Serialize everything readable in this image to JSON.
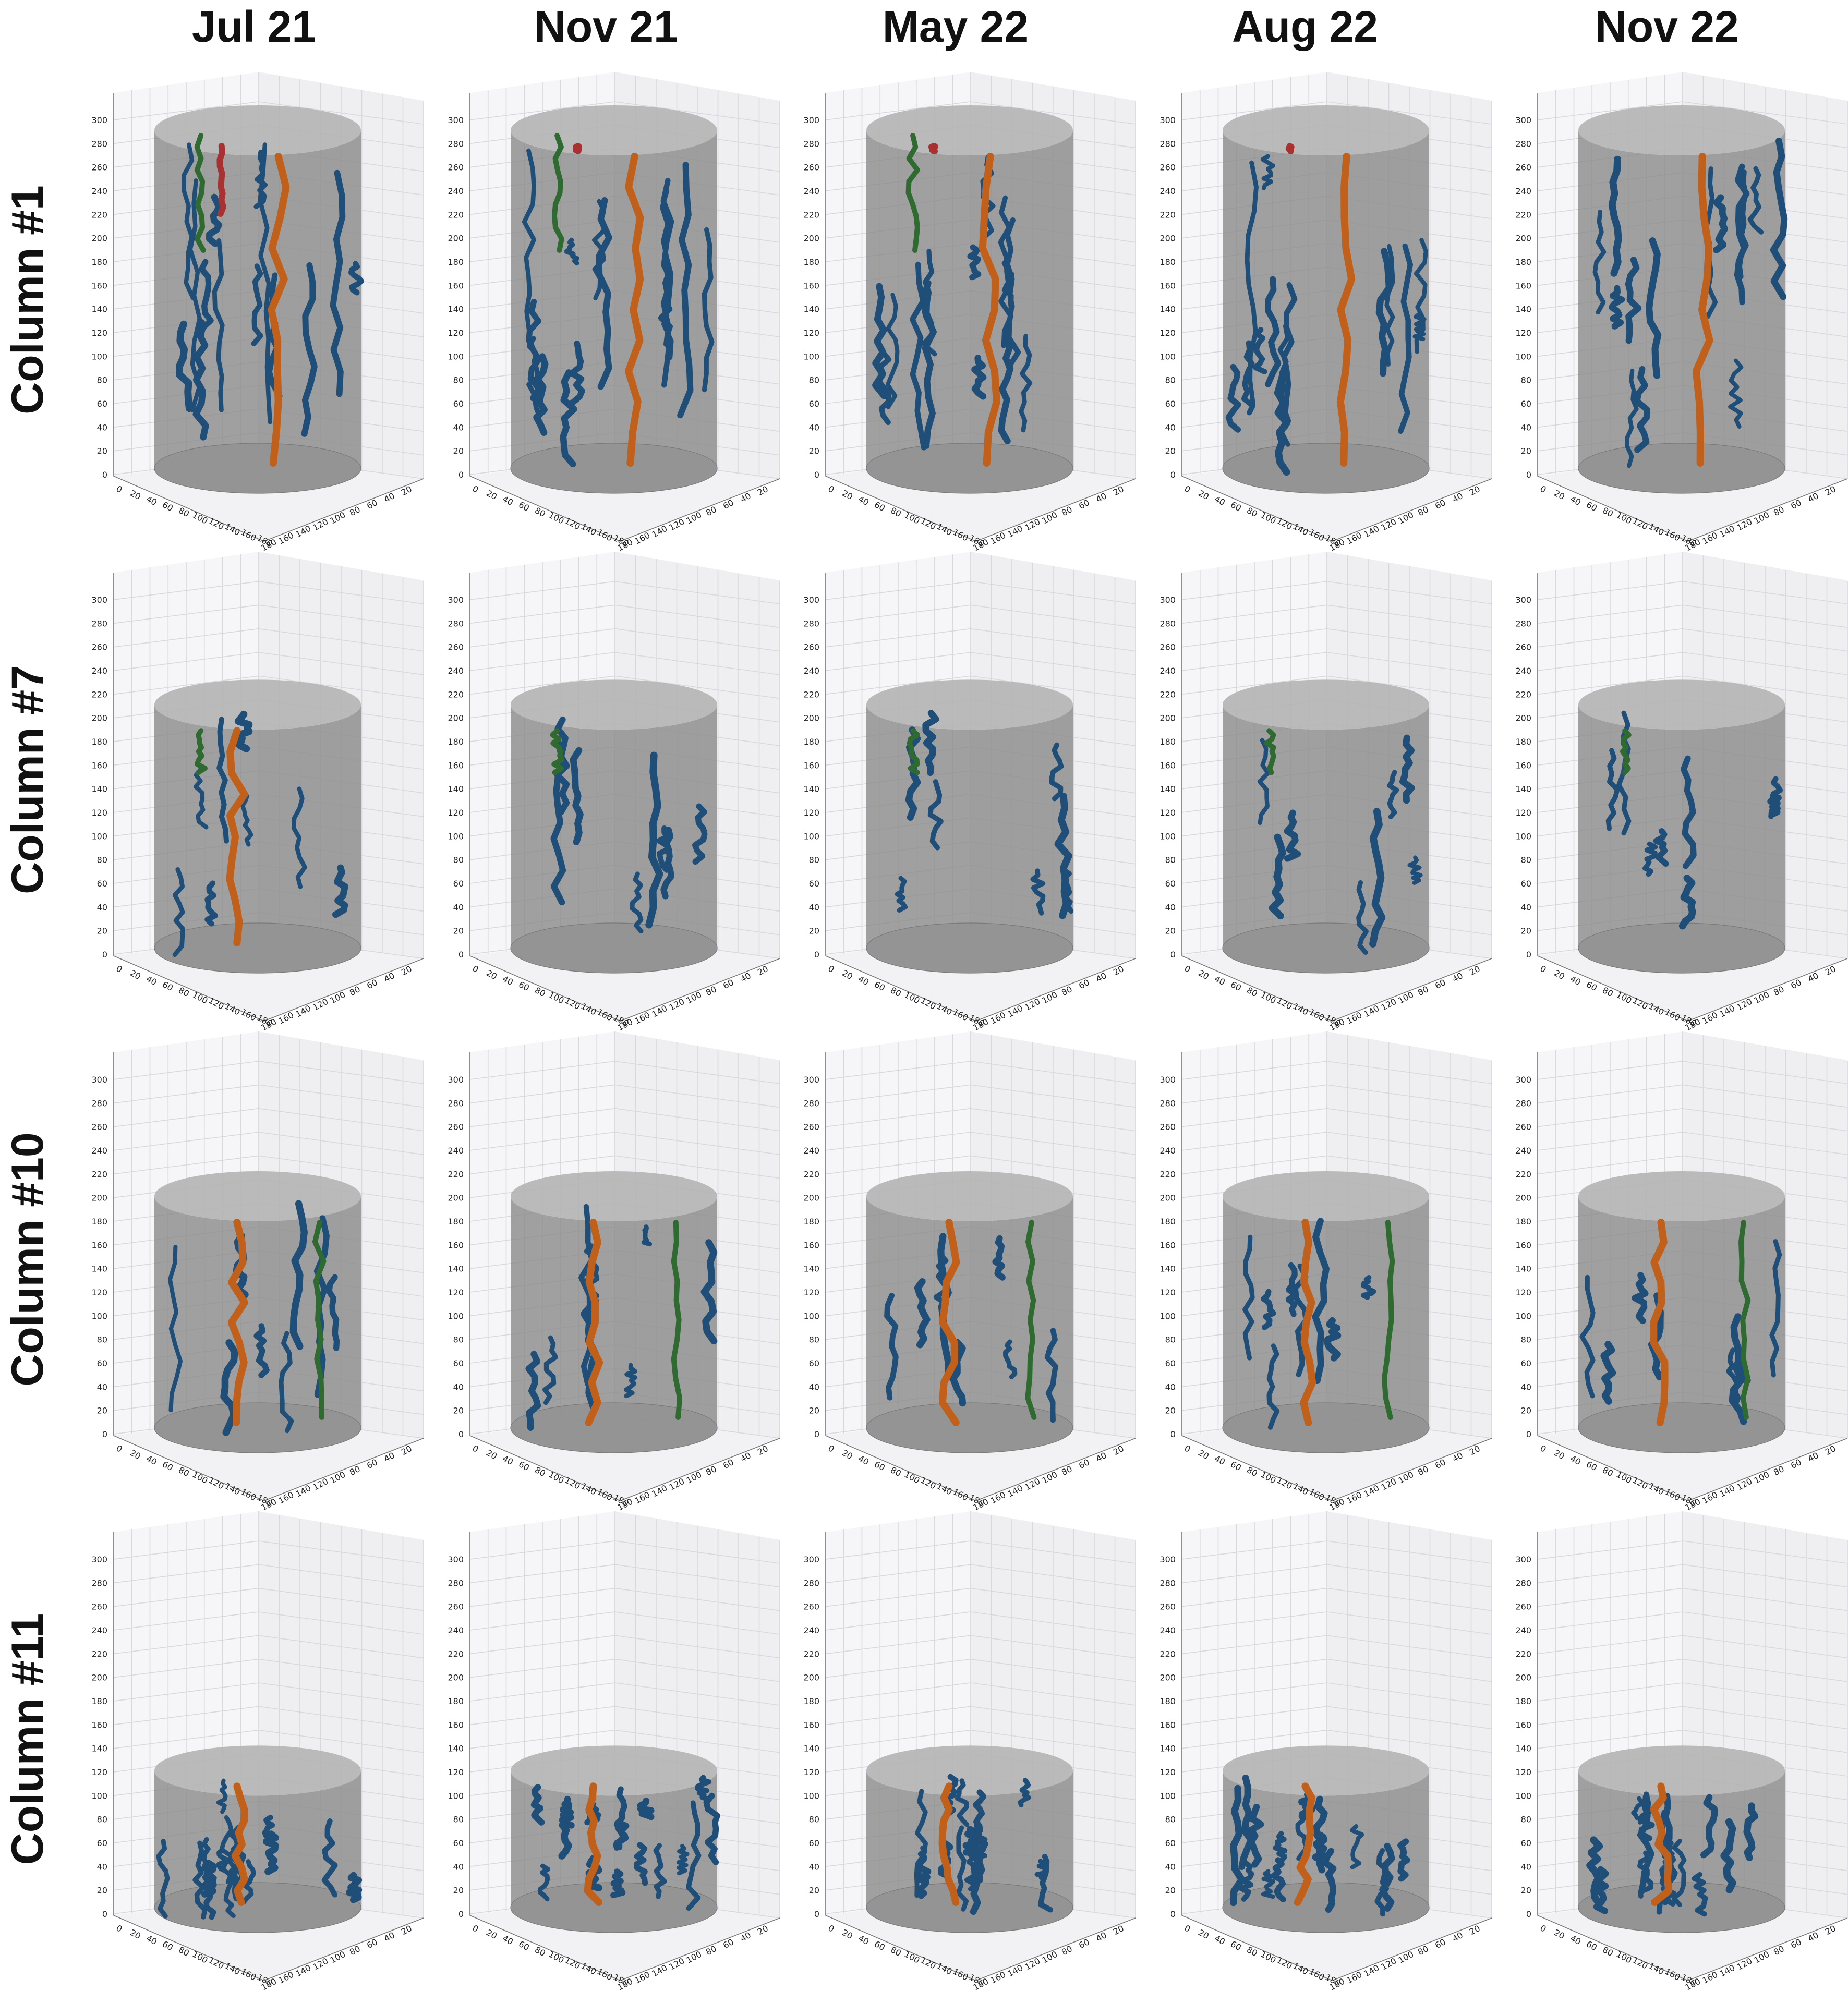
{
  "figure": {
    "column_headers": [
      "Jul 21",
      "Nov 21",
      "May 22",
      "Aug 22",
      "Nov 22"
    ],
    "row_labels": [
      "Column #1",
      "Column #7",
      "Column #10",
      "Column #11"
    ],
    "axis_ticks": {
      "z": [
        "0",
        "20",
        "40",
        "60",
        "80",
        "100",
        "120",
        "140",
        "160",
        "180",
        "200",
        "220",
        "240",
        "260",
        "280",
        "300"
      ],
      "front_left": [
        "0",
        "20",
        "40",
        "60",
        "80",
        "100",
        "120",
        "140",
        "160",
        "180"
      ],
      "front_right": [
        "180",
        "160",
        "140",
        "120",
        "100",
        "80",
        "60",
        "40",
        "20"
      ]
    },
    "colors": {
      "blue_roots": "#1f4e79",
      "orange_root": "#c0601a",
      "green_root": "#2f6b30",
      "red_root": "#a83232",
      "cylinder": "#8c8c8c"
    },
    "cylinder_heights": [
      300,
      220,
      210,
      130
    ]
  },
  "chart_data": {
    "type": "3d-root-reconstruction-grid",
    "rows": [
      {
        "label": "Column #1",
        "cylinder_height": 300,
        "panels": [
          {
            "date": "Jul 21",
            "roots": [
              "blue",
              "orange",
              "green",
              "red"
            ]
          },
          {
            "date": "Nov 21",
            "roots": [
              "blue",
              "orange",
              "green",
              "red"
            ]
          },
          {
            "date": "May 22",
            "roots": [
              "blue",
              "orange",
              "green",
              "red"
            ]
          },
          {
            "date": "Aug 22",
            "roots": [
              "blue",
              "orange",
              "red"
            ]
          },
          {
            "date": "Nov 22",
            "roots": [
              "blue",
              "orange"
            ]
          }
        ]
      },
      {
        "label": "Column #7",
        "cylinder_height": 220,
        "panels": [
          {
            "date": "Jul 21",
            "roots": [
              "blue",
              "orange",
              "green"
            ]
          },
          {
            "date": "Nov 21",
            "roots": [
              "blue",
              "green"
            ]
          },
          {
            "date": "May 22",
            "roots": [
              "blue",
              "green"
            ]
          },
          {
            "date": "Aug 22",
            "roots": [
              "blue",
              "green"
            ]
          },
          {
            "date": "Nov 22",
            "roots": [
              "blue",
              "green"
            ]
          }
        ]
      },
      {
        "label": "Column #10",
        "cylinder_height": 210,
        "panels": [
          {
            "date": "Jul 21",
            "roots": [
              "blue",
              "orange",
              "green"
            ]
          },
          {
            "date": "Nov 21",
            "roots": [
              "blue",
              "orange",
              "green"
            ]
          },
          {
            "date": "May 22",
            "roots": [
              "blue",
              "orange",
              "green"
            ]
          },
          {
            "date": "Aug 22",
            "roots": [
              "blue",
              "orange",
              "green"
            ]
          },
          {
            "date": "Nov 22",
            "roots": [
              "blue",
              "orange",
              "green"
            ]
          }
        ]
      },
      {
        "label": "Column #11",
        "cylinder_height": 130,
        "panels": [
          {
            "date": "Jul 21",
            "roots": [
              "blue",
              "orange"
            ]
          },
          {
            "date": "Nov 21",
            "roots": [
              "blue",
              "orange"
            ]
          },
          {
            "date": "May 22",
            "roots": [
              "blue",
              "orange"
            ]
          },
          {
            "date": "Aug 22",
            "roots": [
              "blue",
              "orange"
            ]
          },
          {
            "date": "Nov 22",
            "roots": [
              "blue",
              "orange"
            ]
          }
        ]
      }
    ]
  }
}
